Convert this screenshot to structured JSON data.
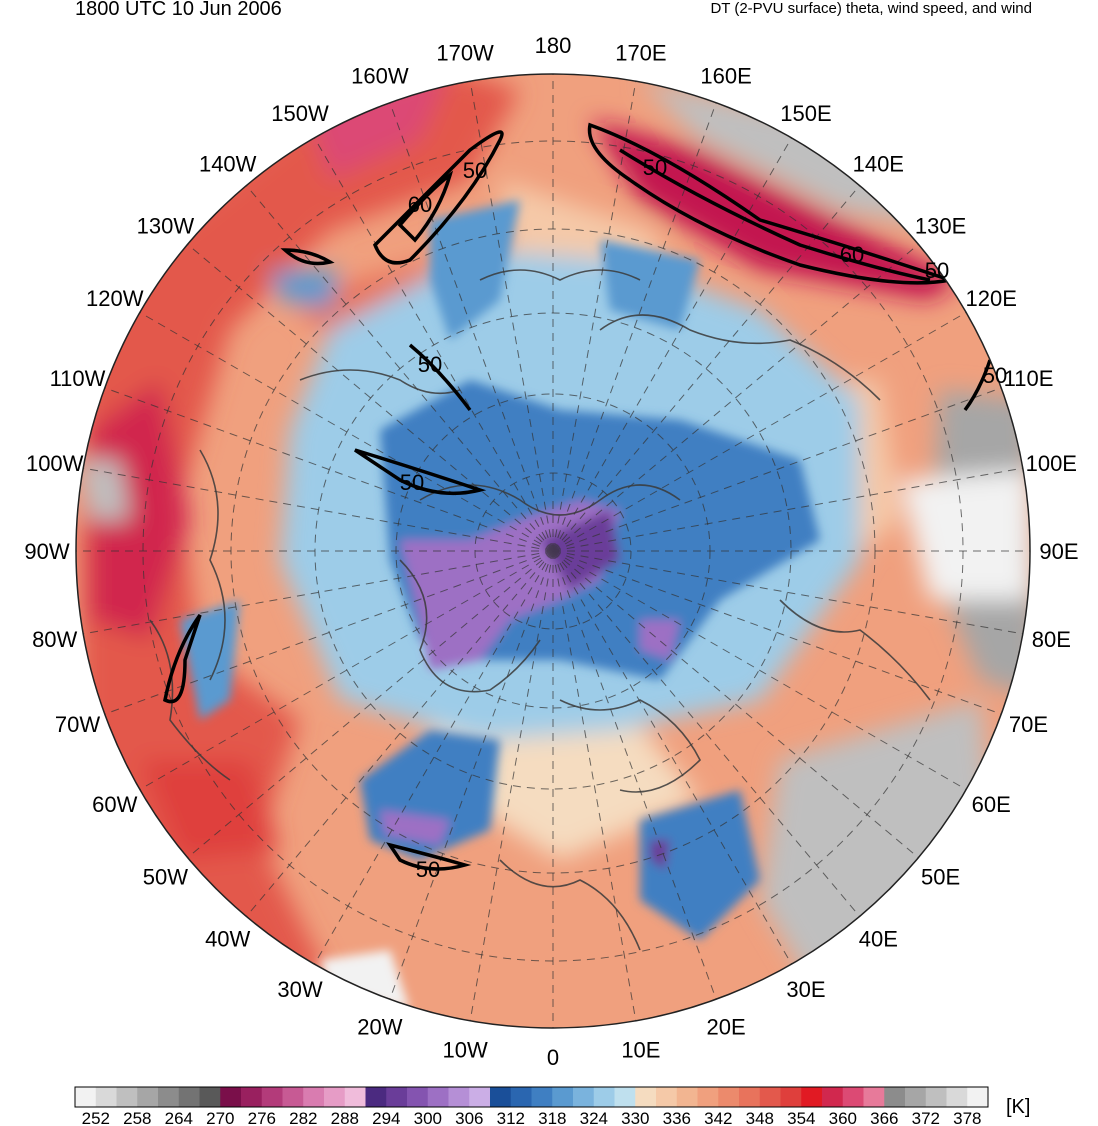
{
  "header": {
    "title_left": "1800 UTC 10 Jun 2006",
    "title_right": "DT (2-PVU surface) theta, wind speed, and wind"
  },
  "map": {
    "projection": "north-polar-stereographic",
    "longitude_labels": [
      "180",
      "170E",
      "160E",
      "150E",
      "140E",
      "130E",
      "120E",
      "110E",
      "100E",
      "90E",
      "80E",
      "70E",
      "60E",
      "50E",
      "40E",
      "30E",
      "20E",
      "10E",
      "0",
      "10W",
      "20W",
      "30W",
      "40W",
      "50W",
      "60W",
      "70W",
      "80W",
      "90W",
      "100W",
      "110W",
      "120W",
      "130W",
      "140W",
      "150W",
      "160W",
      "170W"
    ],
    "wind_speed_contours": [
      "50",
      "60",
      "50",
      "60",
      "50",
      "50",
      "50",
      "50",
      "50"
    ]
  },
  "colorbar": {
    "unit": "[K]",
    "tick_labels": [
      "252",
      "258",
      "264",
      "270",
      "276",
      "282",
      "288",
      "294",
      "300",
      "306",
      "312",
      "318",
      "324",
      "330",
      "336",
      "342",
      "348",
      "354",
      "360",
      "366",
      "372",
      "378"
    ],
    "colors": [
      "#f2f2f2",
      "#d9d9d9",
      "#bfbfbf",
      "#a6a6a6",
      "#8c8c8c",
      "#737373",
      "#595959",
      "#7a0f4a",
      "#99205f",
      "#b33b7a",
      "#c75a94",
      "#d97cb0",
      "#e69cc6",
      "#f0bcdb",
      "#4b2a80",
      "#6a3d99",
      "#8454b0",
      "#9d70c4",
      "#b58fd6",
      "#cbaee6",
      "#1a4f99",
      "#2a66b0",
      "#3f7fc2",
      "#5a9ad0",
      "#7ab3dd",
      "#9dcce8",
      "#bfe0ee",
      "#f5dcc0",
      "#f5c9a8",
      "#f2b591",
      "#f0a07e",
      "#ec8a6c",
      "#e8735c",
      "#e3594c",
      "#df3f3c",
      "#e11a23",
      "#d1284e",
      "#dc4a74",
      "#e77a9a",
      "#8c8c8c",
      "#a6a6a6",
      "#bfbfbf",
      "#d9d9d9",
      "#f2f2f2"
    ]
  }
}
